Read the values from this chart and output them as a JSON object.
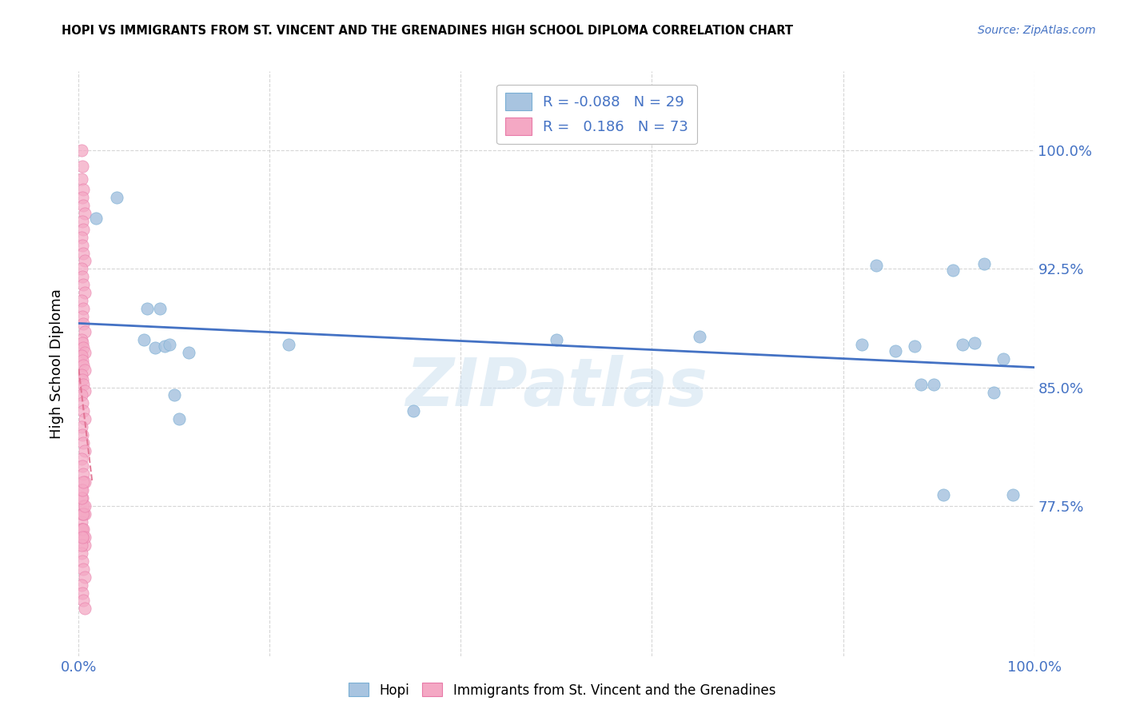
{
  "title": "HOPI VS IMMIGRANTS FROM ST. VINCENT AND THE GRENADINES HIGH SCHOOL DIPLOMA CORRELATION CHART",
  "source": "Source: ZipAtlas.com",
  "ylabel": "High School Diploma",
  "ytick_labels": [
    "100.0%",
    "92.5%",
    "85.0%",
    "77.5%"
  ],
  "ytick_values": [
    1.0,
    0.925,
    0.85,
    0.775
  ],
  "xlim": [
    0.0,
    1.0
  ],
  "ylim": [
    0.68,
    1.05
  ],
  "color_hopi": "#a8c4e0",
  "color_hopi_edge": "#7aafd4",
  "color_svg": "#f4a8c4",
  "color_svg_edge": "#e87aa8",
  "color_hopi_line": "#4472c4",
  "color_svg_line": "#e07090",
  "color_axis_text": "#4472c4",
  "color_grid": "#cccccc",
  "watermark": "ZIPatlas",
  "hopi_x": [
    0.018,
    0.04,
    0.068,
    0.072,
    0.08,
    0.085,
    0.09,
    0.095,
    0.1,
    0.105,
    0.115,
    0.22,
    0.35,
    0.5,
    0.65,
    0.82,
    0.835,
    0.855,
    0.875,
    0.882,
    0.895,
    0.905,
    0.915,
    0.925,
    0.938,
    0.948,
    0.958,
    0.968,
    0.978
  ],
  "hopi_y": [
    0.957,
    0.97,
    0.88,
    0.9,
    0.875,
    0.9,
    0.876,
    0.877,
    0.845,
    0.83,
    0.872,
    0.877,
    0.835,
    0.88,
    0.882,
    0.877,
    0.927,
    0.873,
    0.876,
    0.852,
    0.852,
    0.782,
    0.924,
    0.877,
    0.878,
    0.928,
    0.847,
    0.868,
    0.782
  ],
  "svg_x": [
    0.003,
    0.004,
    0.003,
    0.005,
    0.004,
    0.005,
    0.006,
    0.004,
    0.005,
    0.003,
    0.004,
    0.005,
    0.006,
    0.003,
    0.004,
    0.005,
    0.006,
    0.003,
    0.005,
    0.004,
    0.005,
    0.006,
    0.003,
    0.004,
    0.005,
    0.006,
    0.003,
    0.004,
    0.005,
    0.006,
    0.003,
    0.004,
    0.005,
    0.006,
    0.003,
    0.004,
    0.005,
    0.006,
    0.003,
    0.004,
    0.005,
    0.006,
    0.003,
    0.004,
    0.005,
    0.006,
    0.003,
    0.004,
    0.005,
    0.006,
    0.003,
    0.004,
    0.005,
    0.006,
    0.003,
    0.004,
    0.005,
    0.006,
    0.003,
    0.004,
    0.005,
    0.006,
    0.003,
    0.004,
    0.005,
    0.006,
    0.003,
    0.004,
    0.005,
    0.006,
    0.003,
    0.004,
    0.005
  ],
  "svg_y": [
    1.0,
    0.99,
    0.982,
    0.975,
    0.97,
    0.965,
    0.96,
    0.955,
    0.95,
    0.945,
    0.94,
    0.935,
    0.93,
    0.925,
    0.92,
    0.915,
    0.91,
    0.905,
    0.9,
    0.895,
    0.89,
    0.885,
    0.88,
    0.878,
    0.875,
    0.872,
    0.87,
    0.867,
    0.864,
    0.861,
    0.858,
    0.855,
    0.852,
    0.848,
    0.845,
    0.84,
    0.835,
    0.83,
    0.825,
    0.82,
    0.815,
    0.81,
    0.805,
    0.8,
    0.795,
    0.79,
    0.785,
    0.78,
    0.775,
    0.77,
    0.765,
    0.76,
    0.755,
    0.75,
    0.745,
    0.74,
    0.735,
    0.73,
    0.725,
    0.72,
    0.715,
    0.71,
    0.76,
    0.77,
    0.76,
    0.755,
    0.75,
    0.755,
    0.77,
    0.775,
    0.78,
    0.785,
    0.79
  ],
  "xtick_positions": [
    0.0,
    0.2,
    0.4,
    0.6,
    0.8,
    1.0
  ],
  "xtick_labels": [
    "0.0%",
    "",
    "",
    "",
    "",
    "100.0%"
  ],
  "legend_labels": [
    "R = -0.088   N = 29",
    "R =   0.186   N = 73"
  ],
  "bottom_legend_labels": [
    "Hopi",
    "Immigrants from St. Vincent and the Grenadines"
  ],
  "marker_size": 120
}
